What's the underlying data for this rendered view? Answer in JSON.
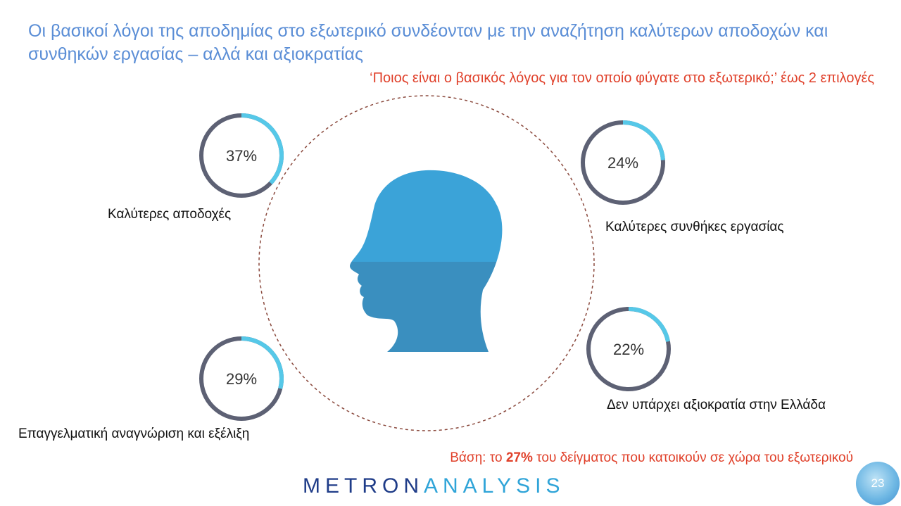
{
  "title": "Οι βασικοί λόγοι της αποδημίας στο εξωτερικό συνδέονταν με την αναζήτηση καλύτερων αποδοχών και συνθηκών εργασίας – αλλά και αξιοκρατίας",
  "question": "‘Ποιος είναι ο βασικός λόγος για τον οποίο φύγατε στο εξωτερικό;’ έως 2 επιλογές",
  "chart_data": {
    "type": "pie",
    "categories": [
      "Καλύτερες αποδοχές",
      "Καλύτερες συνθήκες εργασίας",
      "Επαγγελματική αναγνώριση και εξέλιξη",
      "Δεν υπάρχει αξιοκρατία στην Ελλάδα"
    ],
    "values": [
      37,
      24,
      29,
      22
    ],
    "value_labels": [
      "37%",
      "24%",
      "29%",
      "22%"
    ],
    "unit": "%",
    "colors": {
      "ring": "#5d6174",
      "highlight": "#56c8e8",
      "head_top": "#3ba3d8",
      "head_bottom": "#3a8fbf",
      "dashed_circle": "#8b4a3e"
    }
  },
  "base_note": {
    "prefix": "Βάση: το ",
    "value": "27%",
    "suffix": " του δείγματος που κατοικούν σε χώρα του εξωτερικού"
  },
  "logo": {
    "part1": "METRON",
    "part2": "ANALYSIS"
  },
  "page_number": "23"
}
